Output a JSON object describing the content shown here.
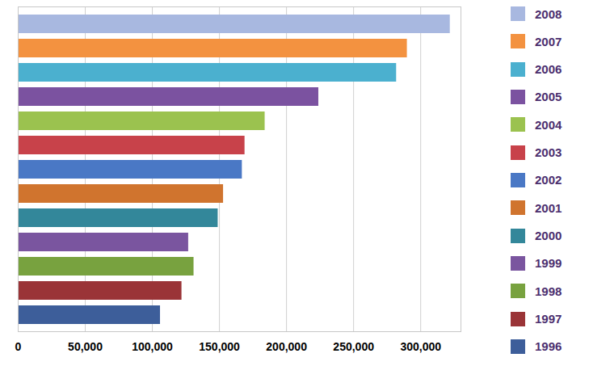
{
  "chart_data": {
    "type": "bar",
    "orientation": "horizontal",
    "categories": [
      "2008",
      "2007",
      "2006",
      "2005",
      "2004",
      "2003",
      "2002",
      "2001",
      "2000",
      "1999",
      "1998",
      "1997",
      "1996"
    ],
    "values": [
      322000,
      290000,
      282000,
      224000,
      184000,
      169000,
      167000,
      153000,
      149000,
      127000,
      131000,
      122000,
      106000
    ],
    "colors": [
      "#a8b8e0",
      "#f39240",
      "#4bb0cf",
      "#7b52a0",
      "#9bc24f",
      "#c8424a",
      "#4a78c5",
      "#d0742e",
      "#33879a",
      "#7a559f",
      "#78a23f",
      "#9a3437",
      "#3d5e9a"
    ],
    "xlim": [
      0,
      330000
    ],
    "xticks": [
      0,
      {
        "value": 50000,
        "label": "50,000"
      },
      {
        "value": 100000,
        "label": "100,000"
      },
      {
        "value": 150000,
        "label": "150,000"
      },
      {
        "value": 200000,
        "label": "200,000"
      },
      {
        "value": 250000,
        "label": "250,000"
      },
      {
        "value": 300000,
        "label": "300,000"
      }
    ],
    "grid": true,
    "legend": "right",
    "tick_labels": "x"
  }
}
